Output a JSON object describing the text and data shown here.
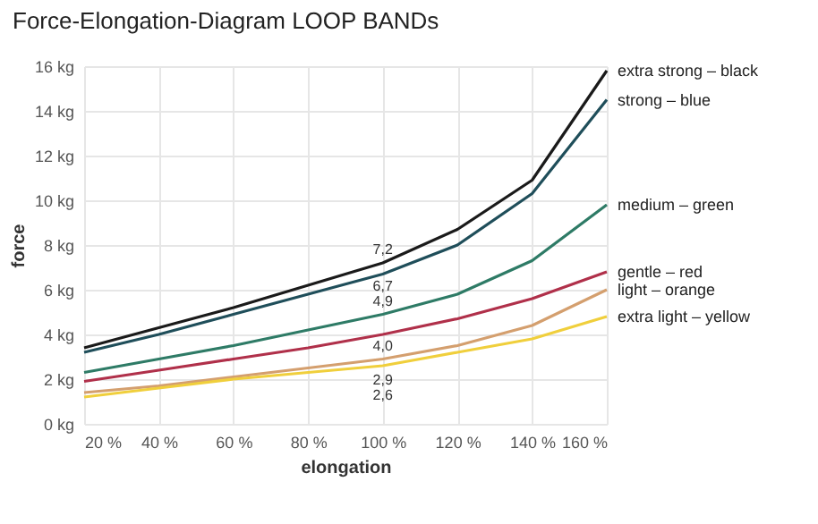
{
  "chart_data": {
    "type": "line",
    "title": "Force-Elongation-Diagram LOOP BANDs",
    "xlabel": "elongation",
    "ylabel": "force",
    "x": [
      20,
      40,
      60,
      80,
      100,
      120,
      140,
      160
    ],
    "series": [
      {
        "name": "extra strong – black",
        "color": "#1a1a1a",
        "values": [
          3.4,
          4.3,
          5.2,
          6.2,
          7.2,
          8.7,
          10.9,
          15.8
        ],
        "value_labels": [
          null,
          null,
          null,
          null,
          "7,2",
          null,
          null,
          null
        ]
      },
      {
        "name": "strong – blue",
        "color": "#1f4e5a",
        "values": [
          3.2,
          4.0,
          4.9,
          5.8,
          6.7,
          8.0,
          10.3,
          14.5
        ],
        "value_labels": [
          null,
          null,
          null,
          null,
          "6,7",
          null,
          null,
          null
        ]
      },
      {
        "name": "medium – green",
        "color": "#2e7b66",
        "values": [
          2.3,
          2.9,
          3.5,
          4.2,
          4.9,
          5.8,
          7.3,
          9.8
        ],
        "value_labels": [
          null,
          null,
          null,
          null,
          "4,9",
          null,
          null,
          null
        ]
      },
      {
        "name": "gentle – red",
        "color": "#b0304a",
        "values": [
          1.9,
          2.4,
          2.9,
          3.4,
          4.0,
          4.7,
          5.6,
          6.8
        ],
        "value_labels": [
          null,
          null,
          null,
          null,
          "4,0",
          null,
          null,
          null
        ]
      },
      {
        "name": "light – orange",
        "color": "#d49f6e",
        "values": [
          1.4,
          1.7,
          2.1,
          2.5,
          2.9,
          3.5,
          4.4,
          6.0
        ],
        "value_labels": [
          null,
          null,
          null,
          null,
          "2,9",
          null,
          null,
          null
        ]
      },
      {
        "name": "extra light – yellow",
        "color": "#f0cf3c",
        "values": [
          1.2,
          1.6,
          2.0,
          2.3,
          2.6,
          3.2,
          3.8,
          4.8
        ],
        "value_labels": [
          null,
          null,
          null,
          null,
          "2,6",
          null,
          null,
          null
        ]
      }
    ],
    "xlim": [
      20,
      160
    ],
    "xticks": [
      {
        "value": 20,
        "label": "20 %"
      },
      {
        "value": 40,
        "label": "40 %"
      },
      {
        "value": 60,
        "label": "60 %"
      },
      {
        "value": 80,
        "label": "80 %"
      },
      {
        "value": 100,
        "label": "100 %"
      },
      {
        "value": 120,
        "label": "120 %"
      },
      {
        "value": 140,
        "label": "140 %"
      },
      {
        "value": 160,
        "label": "160 %"
      }
    ],
    "ylim": [
      0,
      16
    ],
    "yticks": [
      {
        "value": 0,
        "label": "0 kg"
      },
      {
        "value": 2,
        "label": "2 kg"
      },
      {
        "value": 4,
        "label": "4 kg"
      },
      {
        "value": 6,
        "label": "6 kg"
      },
      {
        "value": 8,
        "label": "8 kg"
      },
      {
        "value": 10,
        "label": "10 kg"
      },
      {
        "value": 12,
        "label": "12 kg"
      },
      {
        "value": 14,
        "label": "14 kg"
      },
      {
        "value": 16,
        "label": "16 kg"
      }
    ],
    "grid": true,
    "legend": false,
    "marker": "none",
    "line_style": "solid"
  }
}
